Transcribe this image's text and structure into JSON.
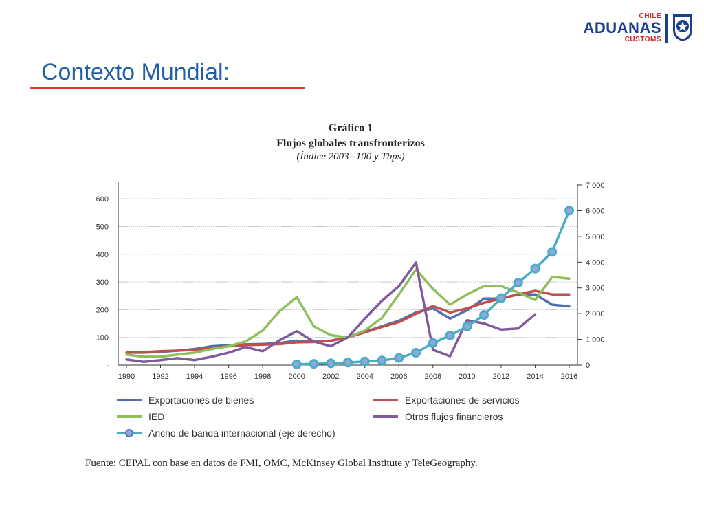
{
  "slide": {
    "title": "Contexto Mundial:"
  },
  "logo": {
    "top": "CHILE",
    "main": "ADUANAS",
    "bottom": "CUSTOMS"
  },
  "figure": {
    "label": "Gráfico 1",
    "subtitle": "Flujos globales transfronterizos",
    "note": "(Índice 2003=100 y Tbps)",
    "source": "Fuente: CEPAL con base en datos de FMI, OMC, McKinsey Global Institute y TeleGeography."
  },
  "chart_data": {
    "type": "line",
    "title": "Flujos globales transfronterizos",
    "x": [
      1990,
      1991,
      1992,
      1993,
      1994,
      1995,
      1996,
      1997,
      1998,
      1999,
      2000,
      2001,
      2002,
      2003,
      2004,
      2005,
      2006,
      2007,
      2008,
      2009,
      2010,
      2011,
      2012,
      2013,
      2014,
      2015,
      2016
    ],
    "x_tick_labels": [
      "1990",
      "1992",
      "1994",
      "1996",
      "1998",
      "2000",
      "2002",
      "2004",
      "2006",
      "2008",
      "2010",
      "2012",
      "2014",
      "2016"
    ],
    "ylim_left": [
      0,
      650
    ],
    "left_tick_labels": [
      "-",
      "100",
      "200",
      "300",
      "400",
      "500",
      "600"
    ],
    "left_ticks": [
      0,
      100,
      200,
      300,
      400,
      500,
      600
    ],
    "ylim_right": [
      0,
      7000
    ],
    "right_tick_labels": [
      "0",
      "1 000",
      "2 000",
      "3 000",
      "4 000",
      "5 000",
      "6 000",
      "7 000"
    ],
    "right_ticks": [
      0,
      1000,
      2000,
      3000,
      4000,
      5000,
      6000,
      7000
    ],
    "grid": true,
    "legend_position": "bottom",
    "series": [
      {
        "name": "Exportaciones de bienes",
        "axis": "left",
        "color": "#4f6fae",
        "x": [
          1990,
          1991,
          1992,
          1993,
          1994,
          1995,
          1996,
          1997,
          1998,
          1999,
          2000,
          2001,
          2002,
          2003,
          2004,
          2005,
          2006,
          2007,
          2008,
          2009,
          2010,
          2011,
          2012,
          2013,
          2014,
          2015,
          2016
        ],
        "values": [
          45,
          45,
          48,
          52,
          58,
          68,
          72,
          75,
          76,
          80,
          88,
          85,
          88,
          100,
          120,
          140,
          160,
          190,
          205,
          168,
          198,
          240,
          240,
          255,
          255,
          218,
          212
        ]
      },
      {
        "name": "Exportaciones de servicios",
        "axis": "left",
        "color": "#c0504d",
        "x": [
          1990,
          1991,
          1992,
          1993,
          1994,
          1995,
          1996,
          1997,
          1998,
          1999,
          2000,
          2001,
          2002,
          2003,
          2004,
          2005,
          2006,
          2007,
          2008,
          2009,
          2010,
          2011,
          2012,
          2013,
          2014,
          2015,
          2016
        ],
        "values": [
          45,
          47,
          50,
          52,
          55,
          62,
          68,
          72,
          74,
          76,
          82,
          83,
          88,
          100,
          118,
          138,
          155,
          185,
          213,
          190,
          205,
          225,
          240,
          255,
          268,
          255,
          255
        ]
      },
      {
        "name": "IED",
        "axis": "left",
        "color": "#8fbe5c",
        "x": [
          1990,
          1991,
          1992,
          1993,
          1994,
          1995,
          1996,
          1997,
          1998,
          1999,
          2000,
          2001,
          2002,
          2003,
          2004,
          2005,
          2006,
          2007,
          2008,
          2009,
          2010,
          2011,
          2012,
          2013,
          2014,
          2015,
          2016
        ],
        "values": [
          38,
          30,
          30,
          38,
          45,
          58,
          68,
          85,
          125,
          195,
          245,
          140,
          108,
          100,
          125,
          170,
          255,
          345,
          275,
          218,
          255,
          285,
          285,
          262,
          235,
          318,
          312
        ]
      },
      {
        "name": "Otros flujos financieros",
        "axis": "left",
        "color": "#7f5b9e",
        "x": [
          1990,
          1991,
          1992,
          1993,
          1994,
          1995,
          1996,
          1997,
          1998,
          1999,
          2000,
          2001,
          2002,
          2003,
          2004,
          2005,
          2006,
          2007,
          2008,
          2009,
          2010,
          2011,
          2012,
          2013,
          2014
        ],
        "values": [
          20,
          12,
          18,
          25,
          18,
          30,
          45,
          65,
          50,
          90,
          122,
          85,
          68,
          100,
          168,
          232,
          285,
          370,
          55,
          32,
          162,
          150,
          128,
          132,
          183
        ]
      },
      {
        "name": "Ancho de banda internacional (eje derecho)",
        "axis": "right",
        "color": "#4bacc6",
        "x": [
          2000,
          2001,
          2002,
          2003,
          2004,
          2005,
          2006,
          2007,
          2008,
          2009,
          2010,
          2011,
          2012,
          2013,
          2014,
          2015,
          2016
        ],
        "values": [
          30,
          50,
          70,
          100,
          140,
          180,
          280,
          480,
          860,
          1150,
          1500,
          1950,
          2600,
          3200,
          3750,
          4400,
          6000
        ]
      }
    ]
  }
}
